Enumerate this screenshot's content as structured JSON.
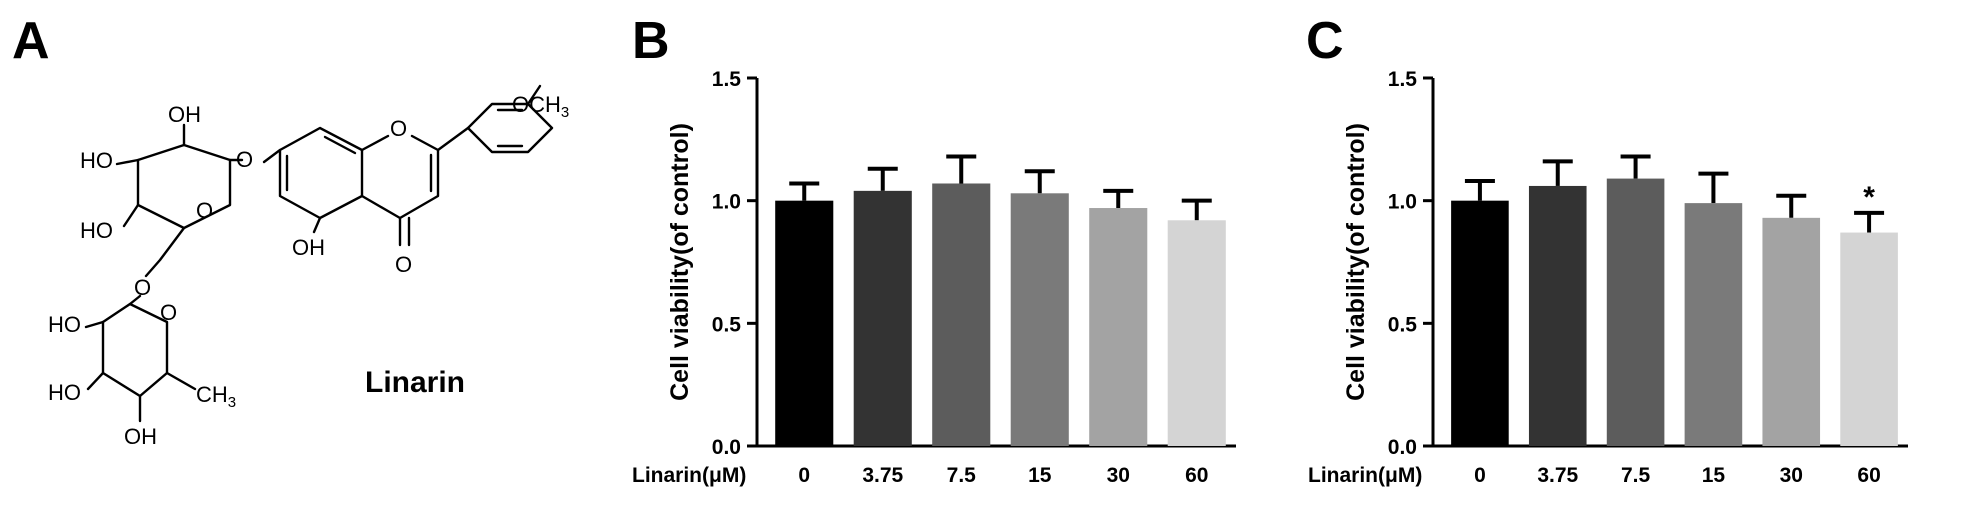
{
  "panels": {
    "a": {
      "letter": "A"
    },
    "b": {
      "letter": "B"
    },
    "c": {
      "letter": "C"
    }
  },
  "structure": {
    "name": "Linarin",
    "labels": {
      "oh_top": "OH",
      "ho_ring1": "HO",
      "ho_ring1b": "HO",
      "o_ring1": "O",
      "o_link": "O",
      "o_glyco": "O",
      "o_chromone": "O",
      "oh_chromone": "OH",
      "o_keto": "O",
      "och3_main": "OCH",
      "och3_sub": "3",
      "ho_ring2a": "HO",
      "ho_ring2b": "HO",
      "o_ring2": "O",
      "ch3_main": "CH",
      "ch3_sub": "3",
      "oh_ring2": "OH"
    }
  },
  "chart_data": [
    {
      "type": "bar",
      "panel": "B",
      "xlabel": "Linarin(μM)",
      "ylabel": "Cell viability(of control)",
      "categories": [
        "0",
        "3.75",
        "7.5",
        "15",
        "30",
        "60"
      ],
      "values": [
        1.0,
        1.04,
        1.07,
        1.03,
        0.97,
        0.92
      ],
      "errors": [
        0.07,
        0.09,
        0.11,
        0.09,
        0.07,
        0.08
      ],
      "significance": [
        "",
        "",
        "",
        "",
        "",
        ""
      ],
      "ylim": [
        0,
        1.5
      ],
      "yticks": [
        "0.0",
        "0.5",
        "1.0",
        "1.5"
      ],
      "colors": [
        "#000000",
        "#333333",
        "#5c5c5c",
        "#7a7a7a",
        "#a3a3a3",
        "#d4d4d4"
      ],
      "grid": false
    },
    {
      "type": "bar",
      "panel": "C",
      "xlabel": "Linarin(μM)",
      "ylabel": "Cell viability(of control)",
      "categories": [
        "0",
        "3.75",
        "7.5",
        "15",
        "30",
        "60"
      ],
      "values": [
        1.0,
        1.06,
        1.09,
        0.99,
        0.93,
        0.87
      ],
      "errors": [
        0.08,
        0.1,
        0.09,
        0.12,
        0.09,
        0.08
      ],
      "significance": [
        "",
        "",
        "",
        "",
        "",
        "*"
      ],
      "ylim": [
        0,
        1.5
      ],
      "yticks": [
        "0.0",
        "0.5",
        "1.0",
        "1.5"
      ],
      "colors": [
        "#000000",
        "#333333",
        "#5c5c5c",
        "#7a7a7a",
        "#a3a3a3",
        "#d4d4d4"
      ],
      "grid": false
    }
  ]
}
